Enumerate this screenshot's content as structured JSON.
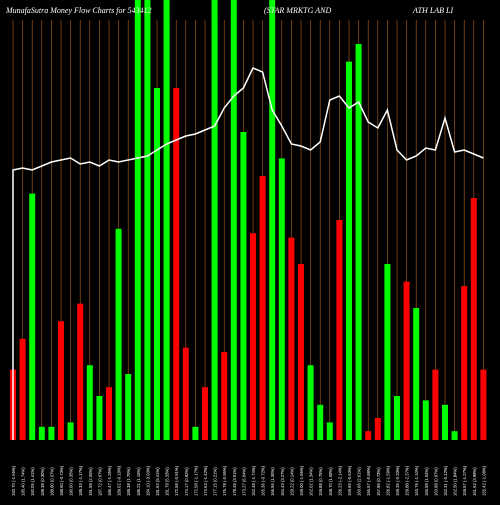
{
  "header": {
    "left": "MunafaSutra  Money Flow  Charts for 543412",
    "middle": "(STAR MRKTG AND",
    "right": "ATH LAB LI"
  },
  "colors": {
    "background": "#000000",
    "up": "#00ff00",
    "down": "#ff0000",
    "line": "#ffffff",
    "grid": "#b5651d"
  },
  "chart_data": {
    "type": "bar",
    "categories": [
      "192.70 (-1.65%)",
      "195.40 (1.74%)",
      "192.05 (1.41%)",
      "189.38 (0.30%)",
      "188.80 (0.07%)",
      "188.60 (-0.73%)",
      "190.00 (0.35%)",
      "189.33 (-1.17%)",
      "191.58 (2.05%)",
      "187.72 (0.67%)",
      "186.47 (-1.35%)",
      "189.02 (-0.19%)",
      "189.38 (1.70%)",
      "186.21 (1.15%)",
      "184.10 (-3.93%)",
      "191.62 (5.41%)",
      "181.78 (5.33%)",
      "172.58 (-0.91%)",
      "174.17 (0.92%)",
      "172.58 (-1.17%)",
      "174.63 (-1.42%)",
      "177.15 (0.21%)",
      "176.78 (-0.95%)",
      "178.48 (3.01%)",
      "173.27 (6.64%)",
      "162.48 (-1.74%)",
      "165.36 (-0.72%)",
      "166.56 (1.30%)",
      "164.43 (3.27%)",
      "159.22 (0.14%)",
      "159.00 (-1.86%)",
      "162.02 (1.34%)",
      "159.88 (0.75%)",
      "158.70 (1.58%)",
      "156.23 (-2.14%)",
      "159.65 (-0.63%)",
      "160.66 (2.61%)",
      "156.57 (-0.88%)",
      "157.96 (0.73%)",
      "156.82 (-1.59%)",
      "159.35 (-0.33%)",
      "159.88 (-2.37%)",
      "163.76 (-1.10%)",
      "165.58 (1.04%)",
      "163.88 (0.97%)",
      "162.31 (-0.12%)",
      "162.50 (1.84%)",
      "159.57 (-1.27%)",
      "161.62 (3.99%)",
      "155.42 (-1.08%)"
    ],
    "values": [
      -0.16,
      -0.23,
      0.56,
      0.03,
      0.03,
      -0.27,
      0.04,
      -0.31,
      0.17,
      0.1,
      -0.12,
      0.48,
      0.15,
      1.0,
      1.0,
      0.8,
      1.0,
      -0.8,
      -0.21,
      0.03,
      -0.12,
      1.0,
      -0.2,
      1.0,
      0.7,
      -0.47,
      -0.6,
      1.0,
      0.64,
      -0.46,
      -0.4,
      0.17,
      0.08,
      0.04,
      -0.5,
      0.86,
      0.9,
      -0.02,
      -0.05,
      0.4,
      0.1,
      -0.36,
      0.3,
      0.09,
      -0.16,
      0.08,
      0.02,
      -0.35,
      -0.55,
      -0.16
    ],
    "price_line": [
      155,
      154,
      155,
      153,
      151,
      150,
      149,
      152,
      151,
      153,
      150,
      151,
      150,
      149,
      148,
      145,
      142,
      140,
      138,
      137,
      135,
      133,
      124,
      118,
      114,
      104,
      106,
      125,
      133,
      142,
      143,
      145,
      141,
      120,
      118,
      124,
      121,
      131,
      134,
      125,
      145,
      150,
      148,
      144,
      145,
      129,
      146,
      145,
      147,
      149
    ],
    "ylim_bars": [
      0,
      1
    ],
    "grid": true
  }
}
